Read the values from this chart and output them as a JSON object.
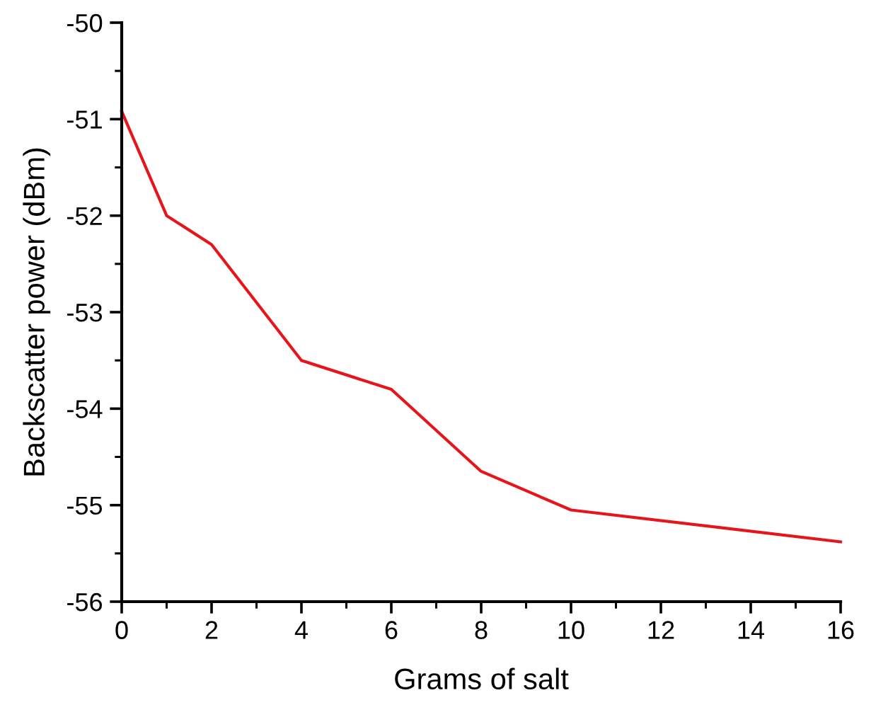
{
  "chart_data": {
    "type": "line",
    "xlabel": "Grams of salt",
    "ylabel": "Backscatter power (dBm)",
    "x": [
      0,
      1,
      2,
      4,
      6,
      8,
      10,
      16
    ],
    "series": [
      {
        "color": "#e8141c",
        "values": [
          -50.92,
          -52.0,
          -52.3,
          -53.5,
          -53.8,
          -54.65,
          -55.05,
          -55.38
        ]
      }
    ],
    "xlim": [
      0,
      16
    ],
    "xticks": [
      0,
      2,
      4,
      6,
      8,
      10,
      12,
      14,
      16
    ],
    "ylim": [
      -56,
      -50
    ],
    "yticks": [
      -56,
      -55,
      -54,
      -53,
      -52,
      -51,
      -50
    ],
    "grid": false,
    "marker": "none",
    "line_style": "solid"
  }
}
